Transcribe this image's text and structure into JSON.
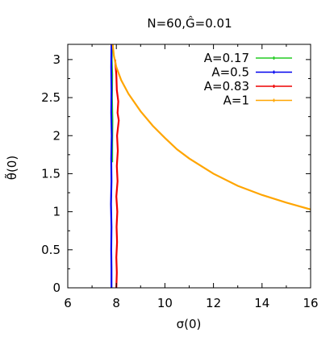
{
  "chart_data": {
    "type": "line",
    "title": "N=60,Ĝ=0.01",
    "xlabel": "σ(0)",
    "ylabel": "θ̃(0)",
    "xlim": [
      6,
      16
    ],
    "ylim": [
      0,
      3.2
    ],
    "xticks": [
      "6",
      "8",
      "10",
      "12",
      "14",
      "16"
    ],
    "yticks": [
      "0",
      "0.5",
      "1",
      "1.5",
      "2",
      "2.5",
      "3"
    ],
    "grid": false,
    "legend_position": "top-right",
    "series": [
      {
        "name": "A=0.17",
        "color": "#22cc22",
        "points": [
          [
            7.82,
            3.2
          ],
          [
            7.81,
            3.0
          ],
          [
            7.83,
            2.8
          ],
          [
            7.82,
            2.5
          ],
          [
            7.84,
            2.2
          ],
          [
            7.83,
            1.9
          ],
          [
            7.83,
            1.65
          ]
        ]
      },
      {
        "name": "A=0.5",
        "color": "#0000ee",
        "points": [
          [
            7.8,
            3.2
          ],
          [
            7.79,
            2.9
          ],
          [
            7.8,
            2.6
          ],
          [
            7.79,
            2.3
          ],
          [
            7.81,
            2.0
          ],
          [
            7.79,
            1.7
          ],
          [
            7.8,
            1.4
          ],
          [
            7.78,
            1.1
          ],
          [
            7.8,
            0.8
          ],
          [
            7.79,
            0.5
          ],
          [
            7.8,
            0.25
          ],
          [
            7.8,
            0.0
          ]
        ]
      },
      {
        "name": "A=0.83",
        "color": "#ee0000",
        "points": [
          [
            7.95,
            3.0
          ],
          [
            8.0,
            2.8
          ],
          [
            8.02,
            2.6
          ],
          [
            8.08,
            2.45
          ],
          [
            8.05,
            2.3
          ],
          [
            8.1,
            2.2
          ],
          [
            8.03,
            2.0
          ],
          [
            8.06,
            1.8
          ],
          [
            8.02,
            1.6
          ],
          [
            8.05,
            1.4
          ],
          [
            8.0,
            1.2
          ],
          [
            8.04,
            1.0
          ],
          [
            8.01,
            0.8
          ],
          [
            8.03,
            0.6
          ],
          [
            8.0,
            0.4
          ],
          [
            8.02,
            0.2
          ],
          [
            8.0,
            0.0
          ]
        ]
      },
      {
        "name": "A=1",
        "color": "#ffa500",
        "points": [
          [
            7.85,
            3.2
          ],
          [
            7.9,
            3.05
          ],
          [
            8.0,
            2.9
          ],
          [
            8.2,
            2.73
          ],
          [
            8.5,
            2.55
          ],
          [
            9.0,
            2.32
          ],
          [
            9.5,
            2.13
          ],
          [
            10.0,
            1.97
          ],
          [
            10.5,
            1.82
          ],
          [
            11.0,
            1.7
          ],
          [
            12.0,
            1.5
          ],
          [
            13.0,
            1.34
          ],
          [
            14.0,
            1.22
          ],
          [
            15.0,
            1.12
          ],
          [
            16.0,
            1.03
          ]
        ]
      }
    ]
  }
}
